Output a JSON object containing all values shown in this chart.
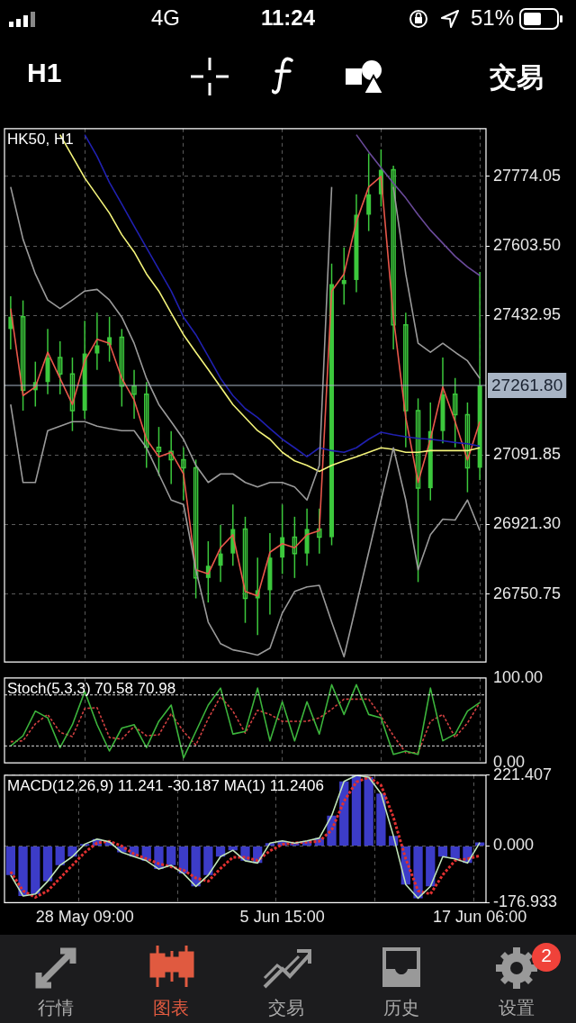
{
  "chart_data": [
    {
      "type": "candlestick",
      "title": "HK50, H1",
      "color": "#3cc83c",
      "marker": "none",
      "grid": true,
      "tick_labels": "y",
      "ohlc": [
        [
          27400,
          27480,
          27350,
          27430
        ],
        [
          27430,
          27470,
          27200,
          27250
        ],
        [
          27250,
          27320,
          27210,
          27270
        ],
        [
          27270,
          27400,
          27240,
          27330
        ],
        [
          27330,
          27370,
          27240,
          27290
        ],
        [
          27290,
          27330,
          27150,
          27200
        ],
        [
          27200,
          27420,
          27180,
          27340
        ],
        [
          27340,
          27440,
          27300,
          27360
        ],
        [
          27360,
          27430,
          27320,
          27380
        ],
        [
          27380,
          27400,
          27210,
          27260
        ],
        [
          27260,
          27300,
          27180,
          27240
        ],
        [
          27240,
          27270,
          27060,
          27110
        ],
        [
          27110,
          27160,
          27040,
          27100
        ],
        [
          27100,
          27150,
          27020,
          27080
        ],
        [
          27080,
          27110,
          26980,
          27060
        ],
        [
          27060,
          27080,
          26740,
          26790
        ],
        [
          26790,
          26880,
          26730,
          26820
        ],
        [
          26820,
          26920,
          26780,
          26850
        ],
        [
          26850,
          26970,
          26820,
          26910
        ],
        [
          26910,
          26940,
          26680,
          26740
        ],
        [
          26740,
          26840,
          26650,
          26760
        ],
        [
          26760,
          26900,
          26700,
          26840
        ],
        [
          26840,
          26970,
          26800,
          26890
        ],
        [
          26890,
          26940,
          26790,
          26850
        ],
        [
          26850,
          26960,
          26820,
          26910
        ],
        [
          26910,
          26960,
          26850,
          26890
        ],
        [
          26890,
          27560,
          26870,
          27510
        ],
        [
          27510,
          27600,
          27460,
          27520
        ],
        [
          27520,
          27730,
          27490,
          27680
        ],
        [
          27680,
          27830,
          27640,
          27730
        ],
        [
          27730,
          27840,
          27700,
          27790
        ],
        [
          27790,
          27800,
          27350,
          27410
        ],
        [
          27410,
          27440,
          27110,
          27200
        ],
        [
          27200,
          27230,
          26780,
          27010
        ],
        [
          27010,
          27220,
          26980,
          27150
        ],
        [
          27150,
          27330,
          27120,
          27240
        ],
        [
          27240,
          27280,
          27110,
          27190
        ],
        [
          27190,
          27220,
          27000,
          27060
        ],
        [
          27060,
          27540,
          27030,
          27262
        ]
      ],
      "series": [
        {
          "type": "line",
          "color": "#9a9a9a",
          "values": [
            27748,
            27620,
            27535,
            27471,
            27450,
            27471,
            27493,
            27497,
            27471,
            27429,
            27365,
            27279,
            27215,
            27173,
            27130,
            27066,
            27024,
            27045,
            27045,
            27024,
            27013,
            27024,
            27024,
            27013,
            26981,
            27066,
            27748,
            null,
            null,
            null,
            null,
            27748,
            27535,
            27365,
            27343,
            27365,
            27343,
            27322,
            27279
          ]
        },
        {
          "type": "line",
          "color": "#9a9a9a",
          "values": [
            27215,
            27024,
            27024,
            27151,
            27162,
            27173,
            27173,
            27162,
            27156,
            27151,
            27151,
            27109,
            27045,
            26981,
            26970,
            26810,
            26682,
            26629,
            26614,
            26608,
            26601,
            26618,
            26704,
            26757,
            26768,
            26772,
            26682,
            26597,
            26725,
            26853,
            26981,
            27109,
            26981,
            26810,
            26896,
            26934,
            26932,
            26981,
            26906
          ]
        },
        {
          "type": "line",
          "color": "#f4f47a",
          "values": [
            null,
            null,
            null,
            null,
            27876,
            27823,
            27770,
            27727,
            27684,
            27631,
            27589,
            27535,
            27493,
            27439,
            27386,
            27343,
            27301,
            27258,
            27215,
            27183,
            27151,
            27130,
            27098,
            27077,
            27066,
            27051,
            27066,
            27077,
            27087,
            27098,
            27109,
            27105,
            27098,
            27098,
            27102,
            27102,
            27102,
            27102,
            27109
          ]
        },
        {
          "type": "line",
          "color": "#2020b0",
          "values": [
            null,
            null,
            null,
            null,
            null,
            null,
            27876,
            27823,
            27759,
            27706,
            27652,
            27599,
            27546,
            27493,
            27429,
            27386,
            27333,
            27279,
            27237,
            27205,
            27183,
            27156,
            27130,
            27109,
            27087,
            27109,
            27102,
            27098,
            27109,
            27130,
            27147,
            27141,
            27136,
            27132,
            27130,
            27126,
            27122,
            27119,
            27113
          ]
        },
        {
          "type": "line",
          "color": "#6a4a9a",
          "values": [
            null,
            null,
            null,
            null,
            null,
            null,
            null,
            null,
            null,
            null,
            null,
            null,
            null,
            null,
            null,
            null,
            null,
            null,
            null,
            null,
            null,
            null,
            null,
            null,
            null,
            null,
            null,
            null,
            27876,
            27834,
            27795,
            27757,
            27721,
            27680,
            27642,
            27610,
            27578,
            27552,
            27531
          ]
        },
        {
          "type": "line",
          "color": "#e8574a",
          "values": [
            27450,
            27237,
            27258,
            27343,
            27279,
            27215,
            27322,
            27375,
            27365,
            27279,
            27226,
            27130,
            27087,
            27098,
            27045,
            26810,
            26800,
            26864,
            26896,
            26757,
            26746,
            26853,
            26874,
            26864,
            26896,
            26906,
            27493,
            27535,
            27663,
            27748,
            27774,
            27429,
            27183,
            27024,
            27130,
            27258,
            27173,
            27079,
            27173
          ]
        }
      ],
      "ylim": [
        26584,
        27891
      ],
      "yticks": [
        26750.75,
        {
          "value": 26921.3,
          "label": "26921.30"
        },
        27091.85,
        27432.95,
        {
          "value": 27603.5,
          "label": "27603.50"
        },
        27774.05
      ],
      "ref_lines": [
        {
          "axis": "y",
          "value": 27261.8,
          "label": "27261.80",
          "color": "#a8b4c4"
        }
      ],
      "annotations": [
        "4G",
        "11:24",
        "51%",
        "H1",
        "交易",
        "行情",
        "图表",
        "交易",
        "历史",
        "设置",
        "2"
      ]
    },
    {
      "type": "line",
      "title": "Stoch(5,3,3) 70.58 70.98",
      "marker": "none",
      "grid": "x",
      "tick_labels": "y",
      "series": [
        {
          "color": "#3cb43c",
          "values": [
            20,
            32,
            61,
            53,
            18,
            45,
            84,
            45,
            14,
            41,
            45,
            18,
            49,
            68,
            6,
            37,
            68,
            88,
            34,
            37,
            88,
            26,
            72,
            26,
            72,
            34,
            92,
            57,
            92,
            57,
            53,
            10,
            14,
            10,
            88,
            26,
            34,
            61,
            71
          ]
        },
        {
          "color": "#d04040",
          "line_style": "dashed",
          "values": [
            25,
            26,
            46,
            57,
            36,
            31,
            64,
            65,
            30,
            28,
            43,
            32,
            33,
            58,
            37,
            21,
            52,
            78,
            61,
            35,
            62,
            57,
            49,
            49,
            49,
            53,
            63,
            75,
            75,
            75,
            55,
            32,
            12,
            12,
            49,
            57,
            30,
            47,
            71
          ]
        }
      ],
      "ylim": [
        0,
        100
      ],
      "yticks": [
        {
          "value": 0,
          "label": "0.00"
        },
        {
          "value": 100,
          "label": "100.00"
        }
      ],
      "ref_lines": [
        {
          "axis": "y",
          "value": 80,
          "color": "#dddddd",
          "line_style": "dashed"
        },
        {
          "axis": "y",
          "value": 20,
          "color": "#dddddd",
          "line_style": "dashed"
        }
      ]
    },
    {
      "type": "bar",
      "title": "MACD(12,26,9) 11.241 -30.187 MA(1) 11.2406",
      "marker": "none",
      "grid": true,
      "categories": [
        null,
        null,
        null,
        null,
        null,
        null,
        "28 May 09:00",
        null,
        null,
        null,
        null,
        null,
        null,
        null,
        null,
        null,
        null,
        null,
        null,
        null,
        null,
        null,
        "5 Jun 15:00",
        null,
        null,
        null,
        null,
        null,
        null,
        null,
        null,
        null,
        null,
        null,
        null,
        null,
        null,
        null,
        "17 Jun 06:00"
      ],
      "series": [
        {
          "type": "bar",
          "color": "#3c3cc8",
          "values": [
            -91,
            -156,
            -150,
            -110,
            -60,
            -33,
            6,
            22,
            13,
            -20,
            -33,
            -46,
            -72,
            -60,
            -86,
            -126,
            -91,
            -33,
            -13,
            -46,
            -53,
            9,
            16,
            9,
            16,
            25,
            95,
            202,
            221,
            215,
            164,
            32,
            -120,
            -163,
            -126,
            -33,
            -40,
            -53,
            11
          ]
        },
        {
          "type": "line",
          "color": "#c0e4b8",
          "values": [
            -91,
            -156,
            -150,
            -110,
            -60,
            -33,
            6,
            22,
            13,
            -20,
            -33,
            -46,
            -72,
            -60,
            -86,
            -126,
            -91,
            -33,
            -13,
            -46,
            -53,
            9,
            16,
            9,
            16,
            25,
            95,
            202,
            221,
            215,
            164,
            32,
            -120,
            -163,
            -126,
            -33,
            -40,
            -53,
            11
          ]
        },
        {
          "type": "line",
          "color": "#e03030",
          "line_style": "dashed",
          "values": [
            -80,
            -140,
            -160,
            -140,
            -100,
            -60,
            -20,
            10,
            15,
            0,
            -25,
            -40,
            -55,
            -65,
            -75,
            -100,
            -110,
            -70,
            -35,
            -35,
            -45,
            -15,
            5,
            10,
            12,
            15,
            50,
            140,
            200,
            215,
            190,
            90,
            -40,
            -140,
            -150,
            -90,
            -45,
            -40,
            -30
          ]
        }
      ],
      "ylim": [
        -176.933,
        221.407
      ],
      "yticks": [
        -176.933,
        {
          "value": 0,
          "label": "0.000"
        },
        221.407
      ]
    }
  ]
}
